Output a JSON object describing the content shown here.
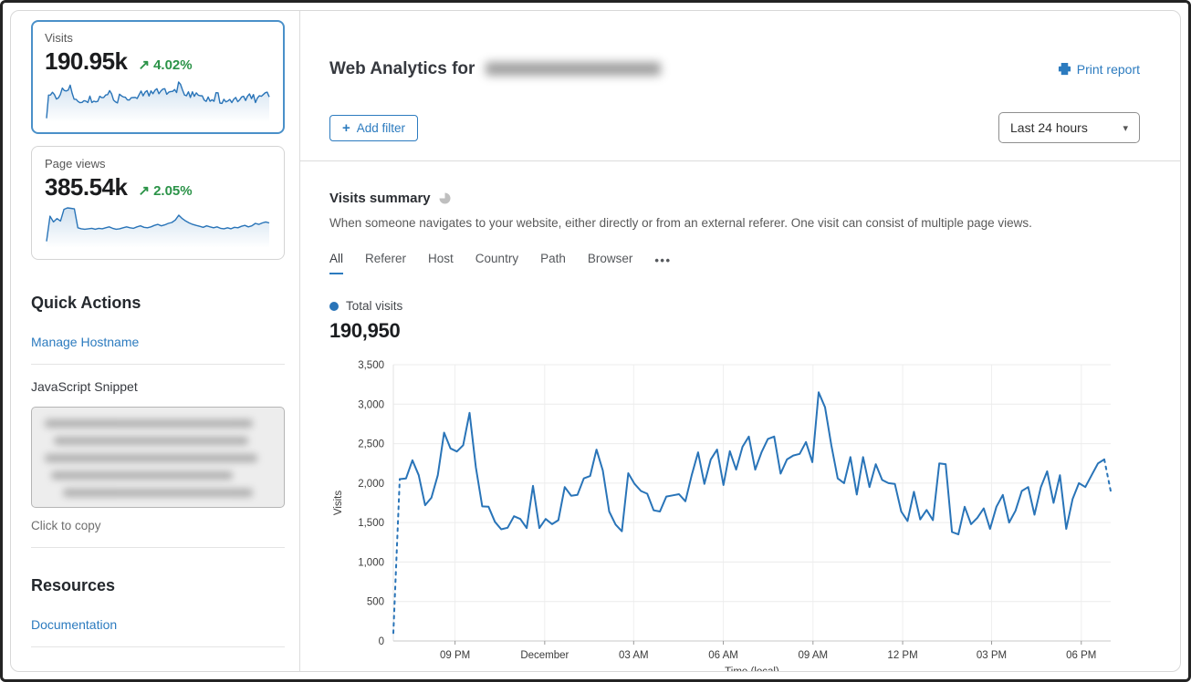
{
  "icons": {
    "trend_up": "↗",
    "caret_down": "▾",
    "more_dots": "•••",
    "plus": "+"
  },
  "colors": {
    "accent_blue": "#2c7bbf",
    "chart_line": "#2974b8",
    "positive_green": "#2b9348",
    "selected_card_border": "#4a90c9"
  },
  "cards": [
    {
      "label": "Visits",
      "value": "190.95k",
      "delta": "4.02%",
      "selected": true,
      "sparkline": "chart"
    },
    {
      "label": "Page views",
      "value": "385.54k",
      "delta": "2.05%",
      "selected": false,
      "sparkline": [
        8,
        60,
        48,
        55,
        50,
        74,
        77,
        76,
        75,
        36,
        34,
        33,
        34,
        35,
        33,
        35,
        34,
        36,
        38,
        35,
        33,
        34,
        36,
        38,
        36,
        35,
        38,
        40,
        37,
        36,
        38,
        41,
        43,
        40,
        42,
        45,
        47,
        52,
        62,
        55,
        50,
        46,
        43,
        41,
        39,
        37,
        40,
        38,
        36,
        38,
        35,
        34,
        36,
        34,
        37,
        36,
        39,
        41,
        38,
        40,
        45,
        43,
        46,
        48,
        46
      ]
    }
  ],
  "sidebar": {
    "quick_actions_title": "Quick Actions",
    "manage_hostname_label": "Manage Hostname",
    "snippet_label": "JavaScript Snippet",
    "copy_hint": "Click to copy",
    "resources_title": "Resources",
    "documentation_label": "Documentation"
  },
  "header": {
    "title_prefix": "Web Analytics for",
    "print_label": "Print report",
    "add_filter_label": "Add filter",
    "time_range_value": "Last 24 hours"
  },
  "summary": {
    "title": "Visits summary",
    "description": "When someone navigates to your website, either directly or from an external referer. One visit can consist of multiple page views.",
    "tabs": [
      "All",
      "Referer",
      "Host",
      "Country",
      "Path",
      "Browser"
    ],
    "active_tab": "All"
  },
  "chart_data": {
    "type": "line",
    "legend": "Total visits",
    "total_label": "190,950",
    "xlabel": "Time (local)",
    "ylabel": "Visits",
    "ylim": [
      0,
      3500
    ],
    "grid": true,
    "y_ticks": [
      0,
      500,
      1000,
      1500,
      2000,
      2500,
      3000,
      3500
    ],
    "y_tick_labels": [
      "0",
      "500",
      "1,000",
      "1,500",
      "2,000",
      "2,500",
      "3,000",
      "3,500"
    ],
    "x_ticks": [
      {
        "label": "09 PM",
        "pos": 0.086
      },
      {
        "label": "December",
        "pos": 0.211
      },
      {
        "label": "03 AM",
        "pos": 0.335
      },
      {
        "label": "06 AM",
        "pos": 0.46
      },
      {
        "label": "09 AM",
        "pos": 0.585
      },
      {
        "label": "12 PM",
        "pos": 0.71
      },
      {
        "label": "03 PM",
        "pos": 0.834
      },
      {
        "label": "06 PM",
        "pos": 0.959
      }
    ],
    "dashed_first_segment": true,
    "dashed_last_segment": true,
    "series": [
      {
        "name": "Total visits",
        "values": [
          100,
          2050,
          2060,
          2290,
          2100,
          1720,
          1815,
          2100,
          2640,
          2440,
          2400,
          2480,
          2890,
          2200,
          1705,
          1700,
          1510,
          1415,
          1435,
          1580,
          1545,
          1430,
          1965,
          1430,
          1545,
          1480,
          1530,
          1950,
          1840,
          1850,
          2060,
          2090,
          2425,
          2160,
          1640,
          1475,
          1390,
          2125,
          1990,
          1900,
          1865,
          1655,
          1640,
          1830,
          1845,
          1860,
          1770,
          2100,
          2390,
          1990,
          2300,
          2425,
          1975,
          2405,
          2170,
          2460,
          2590,
          2170,
          2390,
          2560,
          2590,
          2120,
          2300,
          2350,
          2370,
          2520,
          2265,
          3150,
          2960,
          2480,
          2060,
          2000,
          2330,
          1855,
          2330,
          1950,
          2240,
          2040,
          2000,
          1990,
          1640,
          1520,
          1890,
          1540,
          1660,
          1530,
          2250,
          2240,
          1380,
          1350,
          1700,
          1480,
          1560,
          1680,
          1420,
          1700,
          1850,
          1500,
          1650,
          1900,
          1950,
          1600,
          1950,
          2150,
          1750,
          2100,
          1420,
          1800,
          2000,
          1950,
          2100,
          2250,
          2300,
          1900
        ]
      }
    ]
  }
}
